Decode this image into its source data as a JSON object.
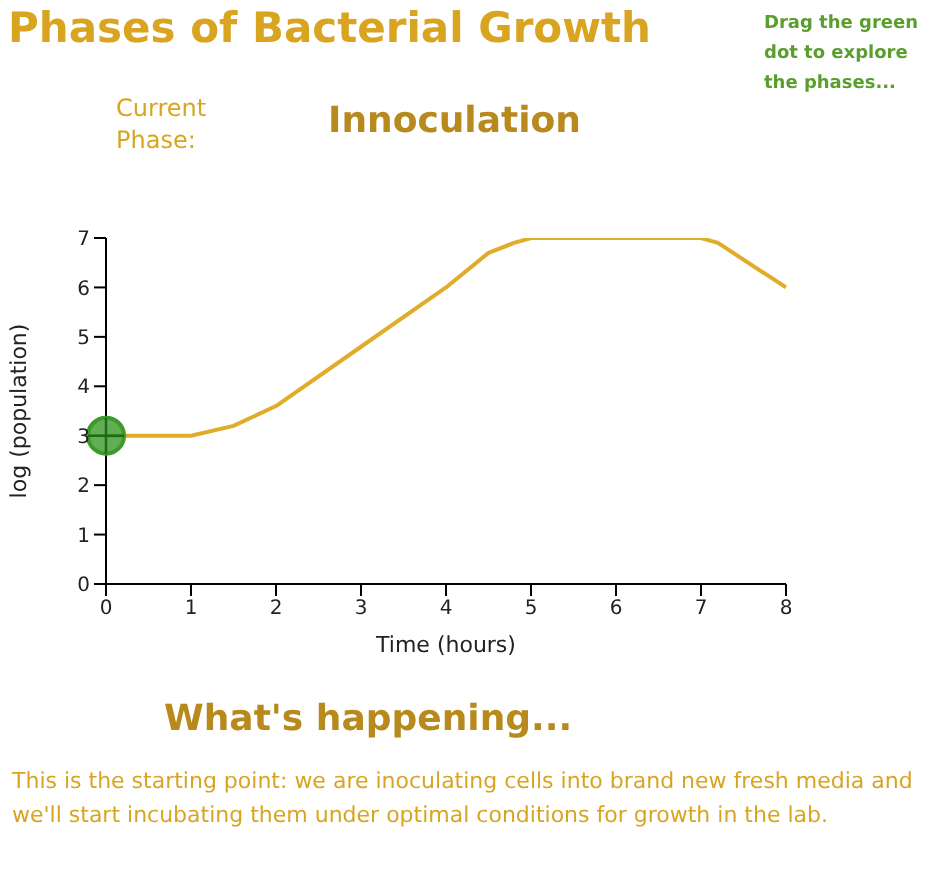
{
  "chart_data": {
    "type": "line",
    "title": "Phases of Bacterial Growth",
    "xlabel": "Time (hours)",
    "ylabel": "log (population)",
    "annotations": [
      "Current Phase:",
      "Innoculation",
      "Drag the green dot to explore the phases...",
      "What's happening...",
      "This is the starting point: we are inoculating cells into brand new fresh media and we'll start incubating them under optimal conditions for growth in the lab."
    ],
    "series": [
      {
        "type": "line",
        "color": "#e0ac2a",
        "x": [
          0,
          1,
          1.5,
          2,
          3,
          4,
          4.5,
          4.8,
          5,
          7,
          7.2,
          8
        ],
        "values": [
          3,
          3,
          3.2,
          3.6,
          4.8,
          6,
          6.7,
          6.9,
          7,
          7,
          6.9,
          6
        ]
      },
      {
        "type": "scatter",
        "color": "#3a9a2a",
        "marker": "circle",
        "x": [
          0
        ],
        "values": [
          3
        ]
      }
    ],
    "xlim": [
      0,
      8
    ],
    "xticks": [
      0,
      1,
      2,
      3,
      4,
      5,
      6,
      7,
      8
    ],
    "ylim": [
      0,
      7
    ],
    "yticks": [
      0,
      1,
      2,
      3,
      4,
      5,
      6,
      7
    ],
    "grid": false
  }
}
